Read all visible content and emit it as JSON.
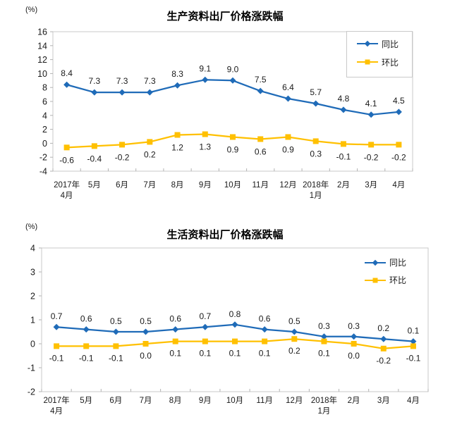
{
  "page": {
    "background_color": "#ffffff",
    "text_color": "#1a1a1a",
    "plot_border_color": "#c9c9c9",
    "tick_color": "#b3b3b3"
  },
  "chart_data": [
    {
      "type": "line",
      "title": "生产资料出厂价格涨跌幅",
      "unit_label": "(%)",
      "categories": [
        "2017年\n4月",
        "5月",
        "6月",
        "7月",
        "8月",
        "9月",
        "10月",
        "11月",
        "12月",
        "2018年\n1月",
        "2月",
        "3月",
        "4月"
      ],
      "series": [
        {
          "id": "yoy",
          "name": "同比",
          "color": "#1F6BB8",
          "marker": "diamond",
          "label_side": "above",
          "values": [
            8.4,
            7.3,
            7.3,
            7.3,
            8.3,
            9.1,
            9.0,
            7.5,
            6.4,
            5.7,
            4.8,
            4.1,
            4.5
          ]
        },
        {
          "id": "mom",
          "name": "环比",
          "color": "#FFC000",
          "marker": "square",
          "label_side": "below",
          "values": [
            -0.6,
            -0.4,
            -0.2,
            0.2,
            1.2,
            1.3,
            0.9,
            0.6,
            0.9,
            0.3,
            -0.1,
            -0.2,
            -0.2
          ]
        }
      ],
      "ylim": [
        -4,
        16
      ],
      "ytick_step": 2,
      "grid": false,
      "legend_position": "top-right",
      "legend_border": true
    },
    {
      "type": "line",
      "title": "生活资料出厂价格涨跌幅",
      "unit_label": "(%)",
      "categories": [
        "2017年\n4月",
        "5月",
        "6月",
        "7月",
        "8月",
        "9月",
        "10月",
        "11月",
        "12月",
        "2018年\n1月",
        "2月",
        "3月",
        "4月"
      ],
      "series": [
        {
          "id": "yoy",
          "name": "同比",
          "color": "#1F6BB8",
          "marker": "diamond",
          "label_side": "above",
          "values": [
            0.7,
            0.6,
            0.5,
            0.5,
            0.6,
            0.7,
            0.8,
            0.6,
            0.5,
            0.3,
            0.3,
            0.2,
            0.1
          ]
        },
        {
          "id": "mom",
          "name": "环比",
          "color": "#FFC000",
          "marker": "square",
          "label_side": "below",
          "values": [
            -0.1,
            -0.1,
            -0.1,
            0.0,
            0.1,
            0.1,
            0.1,
            0.1,
            0.2,
            0.1,
            0.0,
            -0.2,
            -0.1
          ]
        }
      ],
      "ylim": [
        -2,
        4
      ],
      "ytick_step": 1,
      "grid": false,
      "legend_position": "top-right",
      "legend_border": false
    }
  ]
}
